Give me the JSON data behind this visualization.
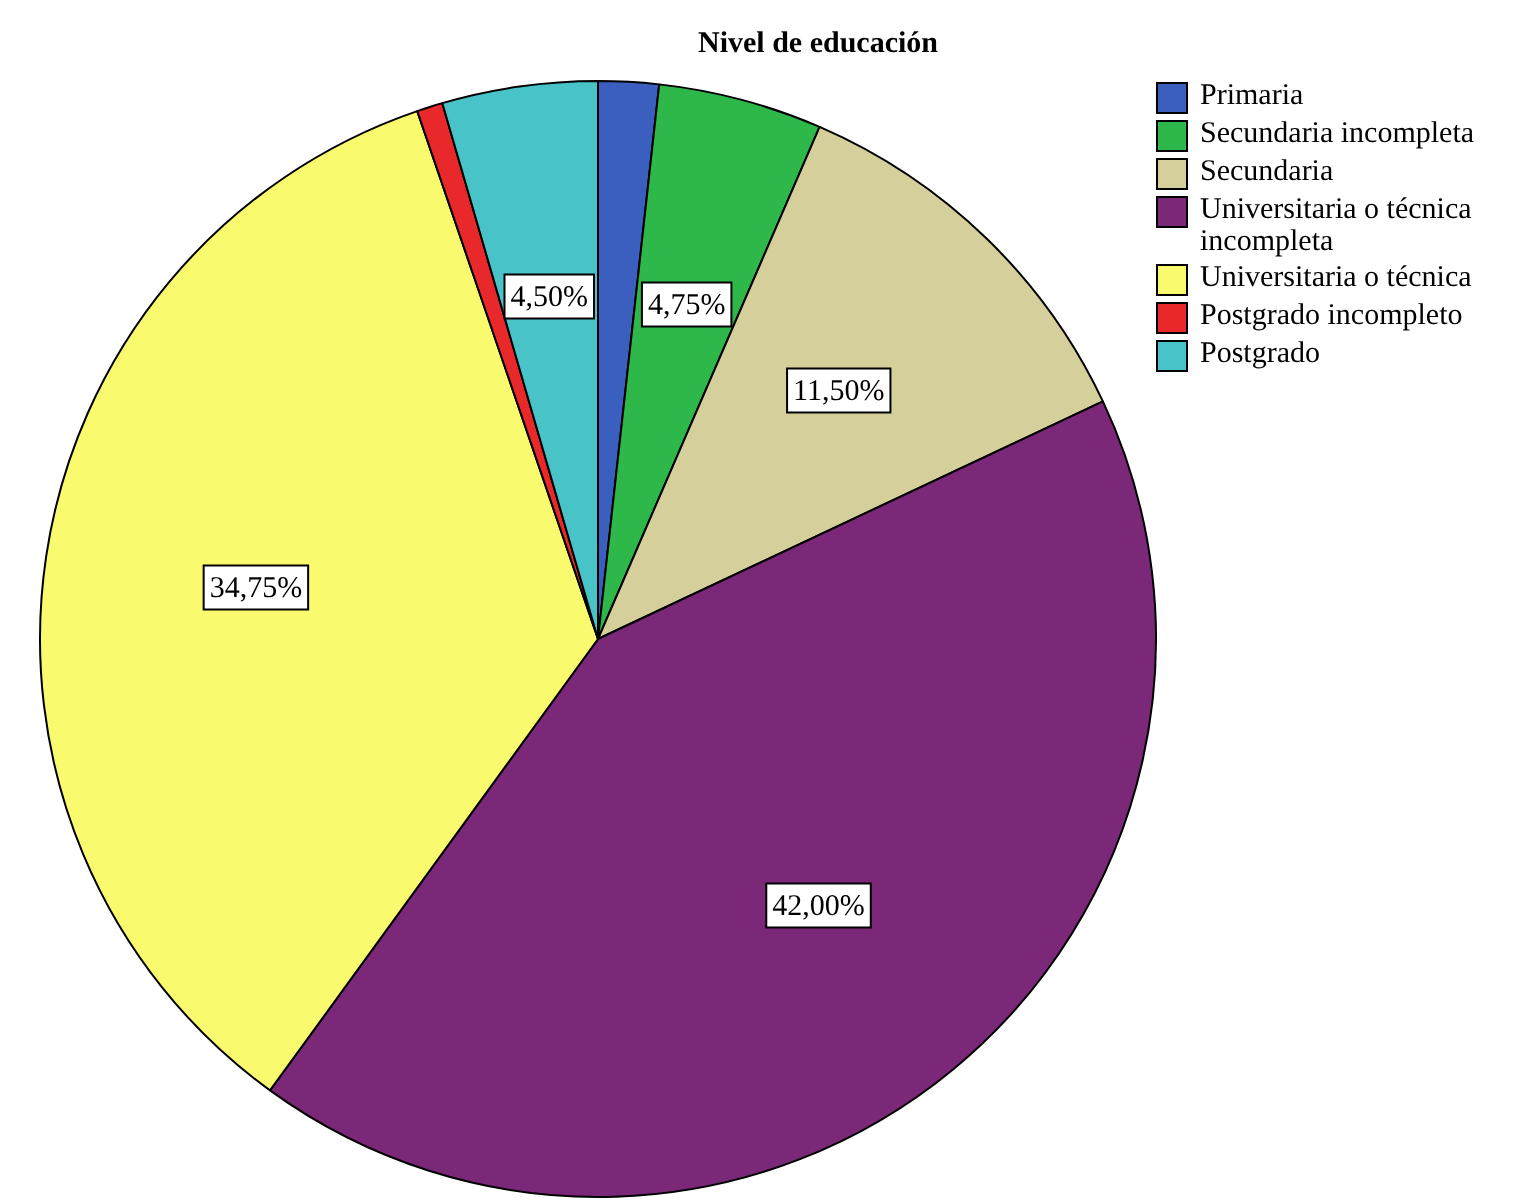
{
  "chart_data": {
    "type": "pie",
    "title": "Nivel de educación",
    "categories": [
      "Primaria",
      "Secundaria incompleta",
      "Secundaria",
      "Universitaria o técnica incompleta",
      "Universitaria o técnica",
      "Postgrado incompleto",
      "Postgrado"
    ],
    "values": [
      1.75,
      4.75,
      11.5,
      42.0,
      34.75,
      0.75,
      4.5
    ],
    "value_labels": [
      null,
      "4,75%",
      "11,50%",
      "42,00%",
      "34,75%",
      null,
      "4,50%"
    ],
    "colors": [
      "#3a5fbf",
      "#2eb84a",
      "#d4cf9b",
      "#7b2878",
      "#fafa6e",
      "#e8282a",
      "#48c3c8"
    ],
    "legend": "top right"
  }
}
